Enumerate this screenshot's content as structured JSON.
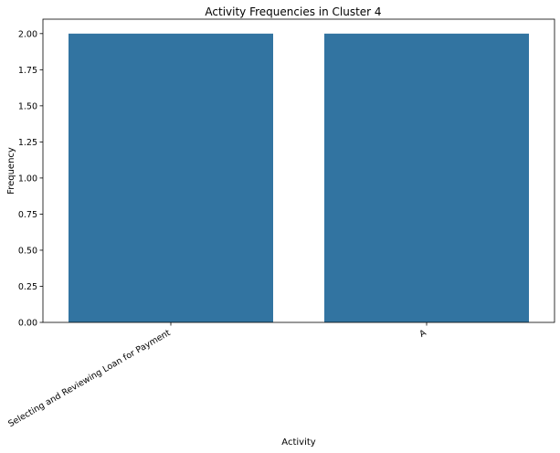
{
  "chart_data": {
    "type": "bar",
    "title": "Activity Frequencies in Cluster 4",
    "xlabel": "Activity",
    "ylabel": "Frequency",
    "categories": [
      "Selecting and Reviewing Loan for Payment",
      "A"
    ],
    "values": [
      2.0,
      2.0
    ],
    "ylim": [
      0,
      2.1
    ],
    "yticks": [
      "0.00",
      "0.25",
      "0.50",
      "0.75",
      "1.00",
      "1.25",
      "1.50",
      "1.75",
      "2.00"
    ],
    "bar_color": "#3274a1",
    "grid": false,
    "legend": "none"
  }
}
